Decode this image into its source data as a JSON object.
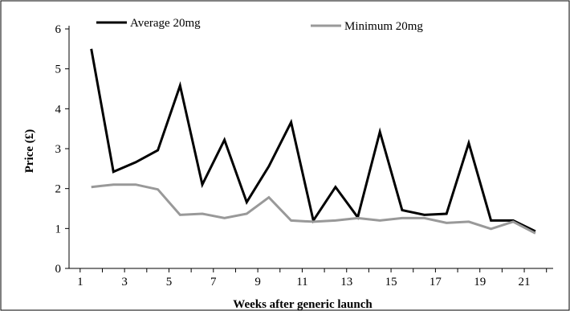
{
  "chart_data": {
    "type": "line",
    "title": "",
    "xlabel": "Weeks after generic launch",
    "ylabel": "Price (£)",
    "xlim": [
      0.5,
      22.3
    ],
    "ylim": [
      0,
      6
    ],
    "x_ticks": [
      1,
      3,
      5,
      7,
      9,
      11,
      13,
      15,
      17,
      19,
      21
    ],
    "y_ticks": [
      0,
      1,
      2,
      3,
      4,
      5,
      6
    ],
    "grid": false,
    "legend_position": "top",
    "x": [
      1.5,
      2.5,
      3.5,
      4.5,
      5.5,
      6.5,
      7.5,
      8.5,
      9.5,
      10.5,
      11.5,
      12.5,
      13.5,
      14.5,
      15.5,
      16.5,
      17.5,
      18.5,
      19.5,
      20.5,
      21.5
    ],
    "series": [
      {
        "name": "Average 20mg",
        "color": "#000000",
        "values": [
          5.5,
          2.42,
          2.66,
          2.96,
          4.58,
          2.1,
          3.22,
          1.66,
          2.56,
          3.66,
          1.2,
          2.04,
          1.28,
          3.42,
          1.46,
          1.34,
          1.37,
          3.14,
          1.2,
          1.2,
          0.93
        ]
      },
      {
        "name": "Minimum 20mg",
        "color": "#999999",
        "values": [
          2.04,
          2.1,
          2.1,
          1.98,
          1.34,
          1.37,
          1.26,
          1.37,
          1.78,
          1.2,
          1.17,
          1.2,
          1.26,
          1.2,
          1.26,
          1.26,
          1.14,
          1.17,
          0.99,
          1.17,
          0.88
        ]
      }
    ]
  }
}
